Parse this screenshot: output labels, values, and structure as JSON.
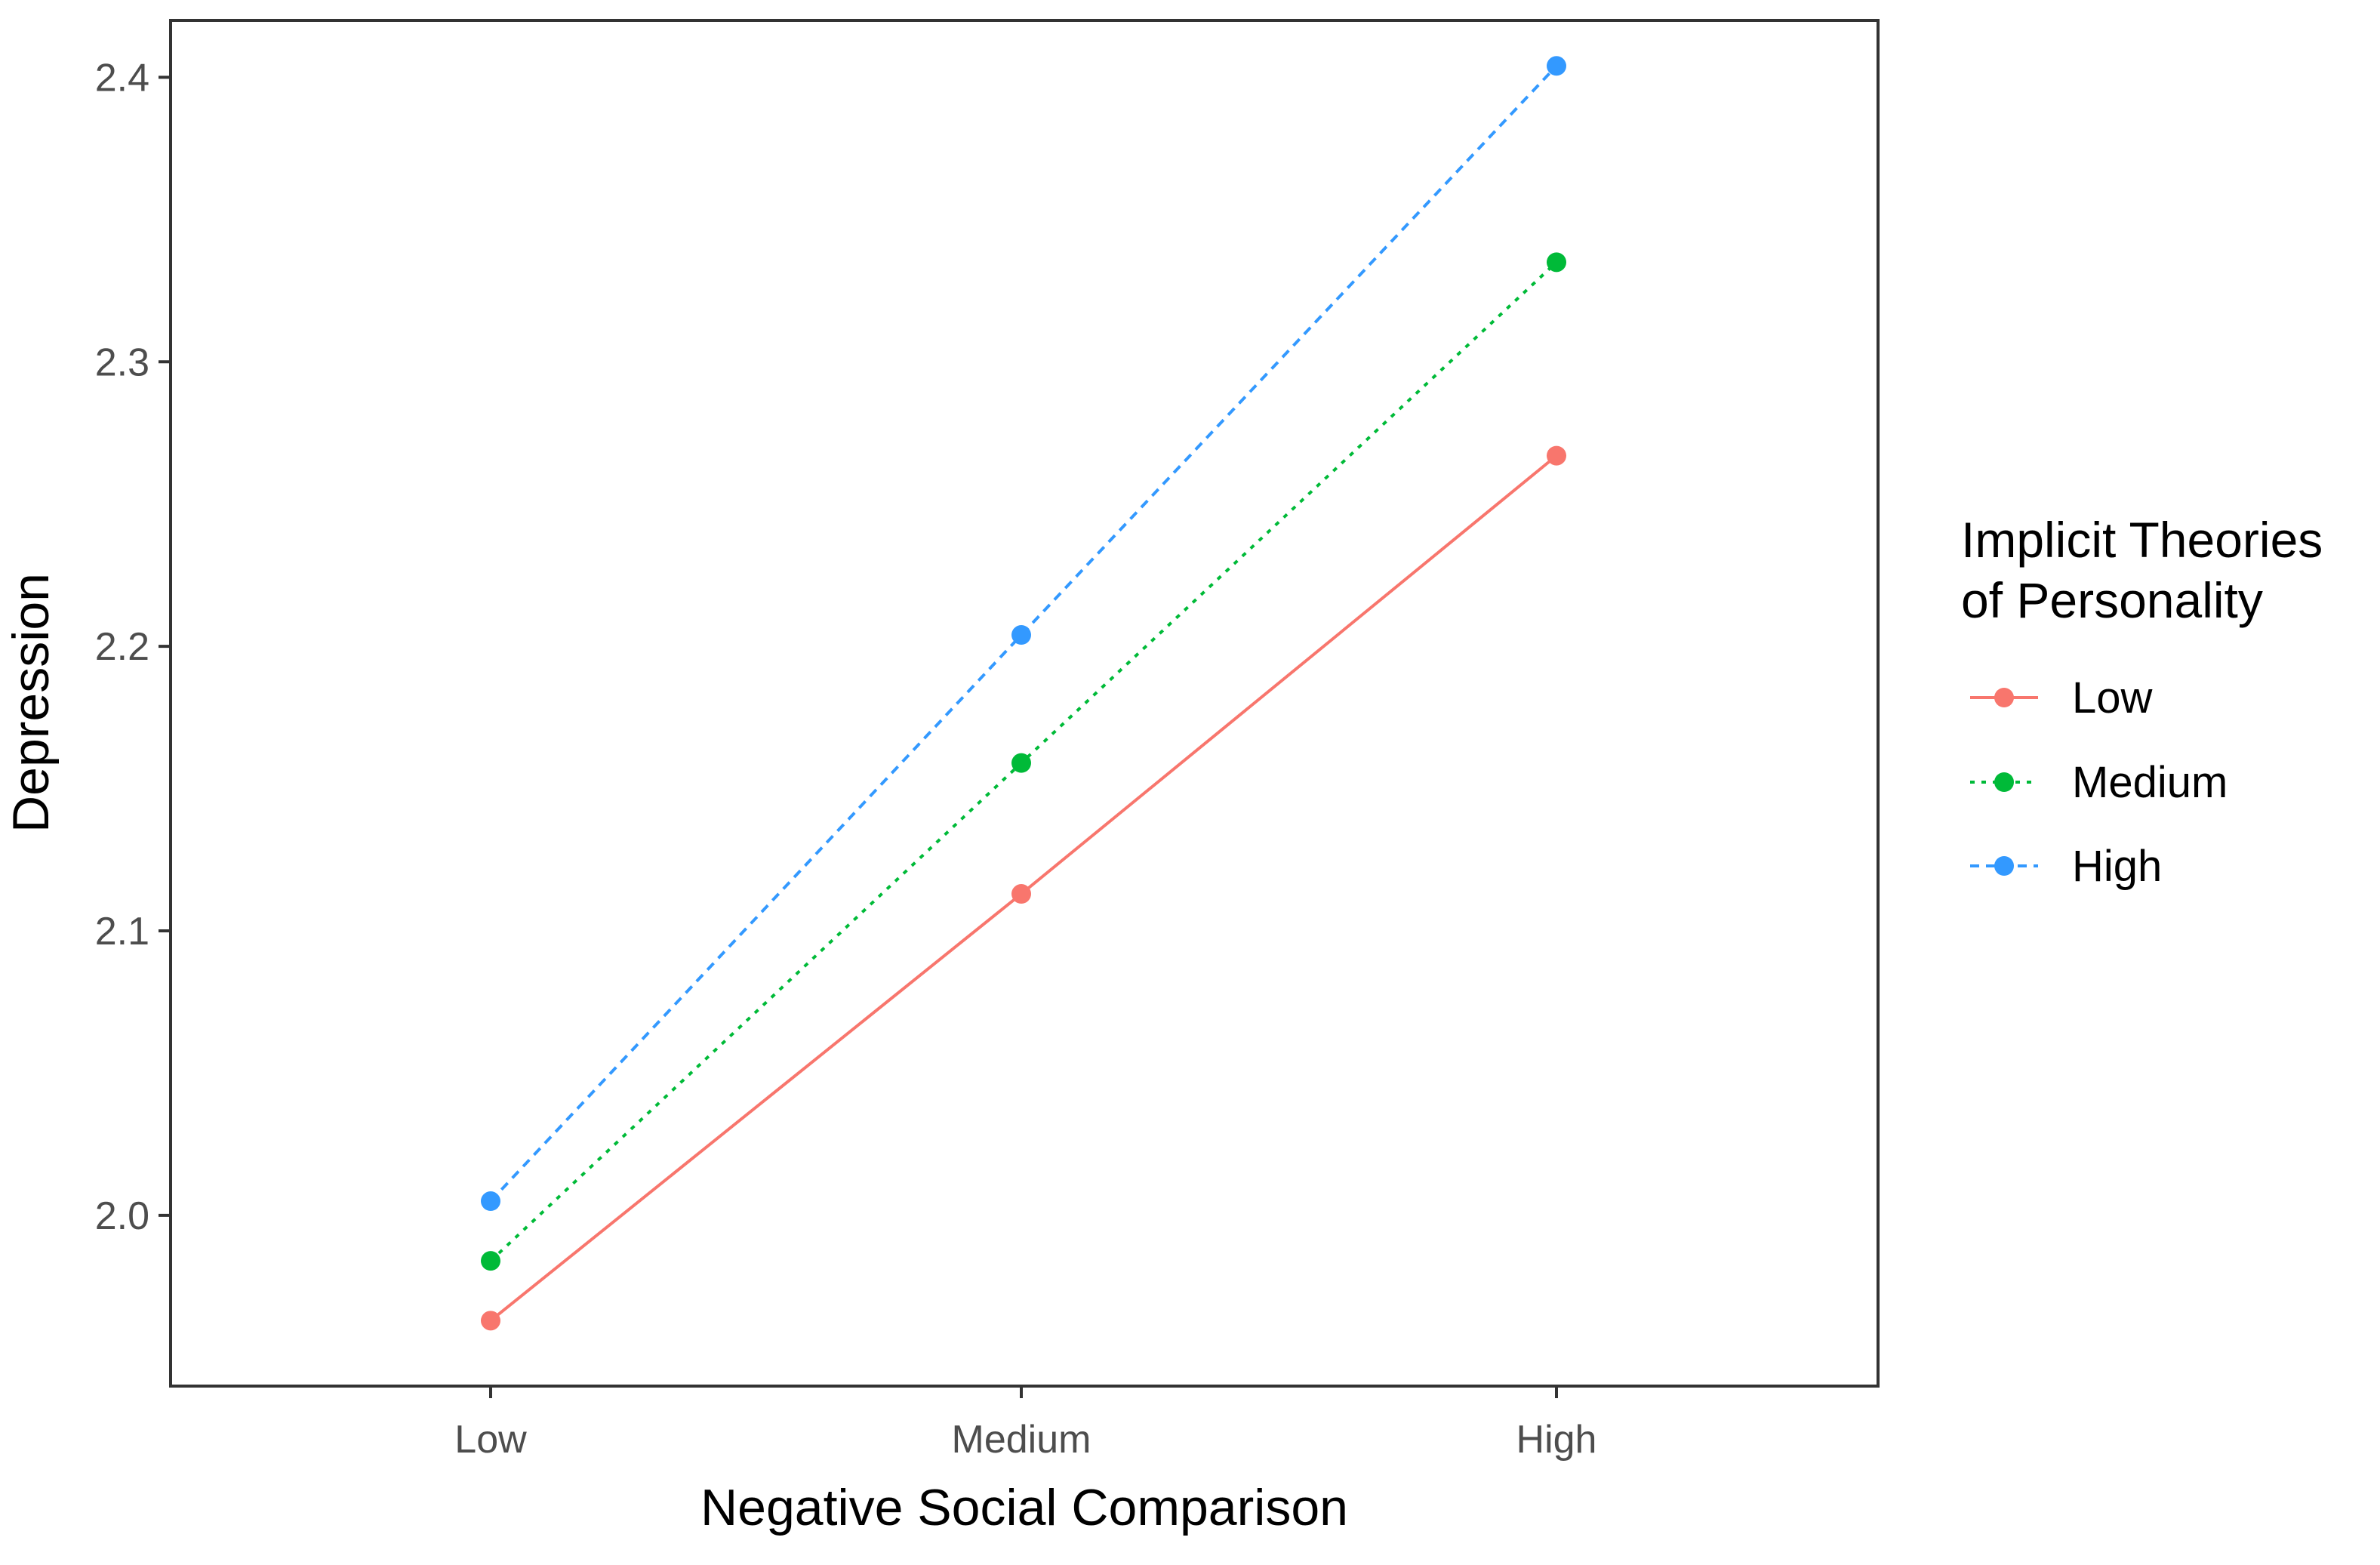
{
  "chart_data": {
    "type": "line",
    "title": "",
    "xlabel": "Negative Social Comparison",
    "ylabel": "Depression",
    "categories": [
      "Low",
      "Medium",
      "High"
    ],
    "ylim": [
      1.94,
      2.42
    ],
    "yticks": [
      2.0,
      2.1,
      2.2,
      2.3,
      2.4
    ],
    "ytick_labels": [
      "2.0",
      "2.1",
      "2.2",
      "2.3",
      "2.4"
    ],
    "grid": false,
    "legend": {
      "title_line1": "Implicit Theories",
      "title_line2": "of Personality",
      "placement": "right"
    },
    "series": [
      {
        "name": "Low",
        "color": "#F8766D",
        "dash": "solid",
        "values": [
          1.963,
          2.113,
          2.267
        ]
      },
      {
        "name": "Medium",
        "color": "#00BA38",
        "dash": "dotted",
        "values": [
          1.984,
          2.159,
          2.335
        ]
      },
      {
        "name": "High",
        "color": "#3399FF",
        "dash": "dashed",
        "values": [
          2.005,
          2.204,
          2.404
        ]
      }
    ]
  }
}
